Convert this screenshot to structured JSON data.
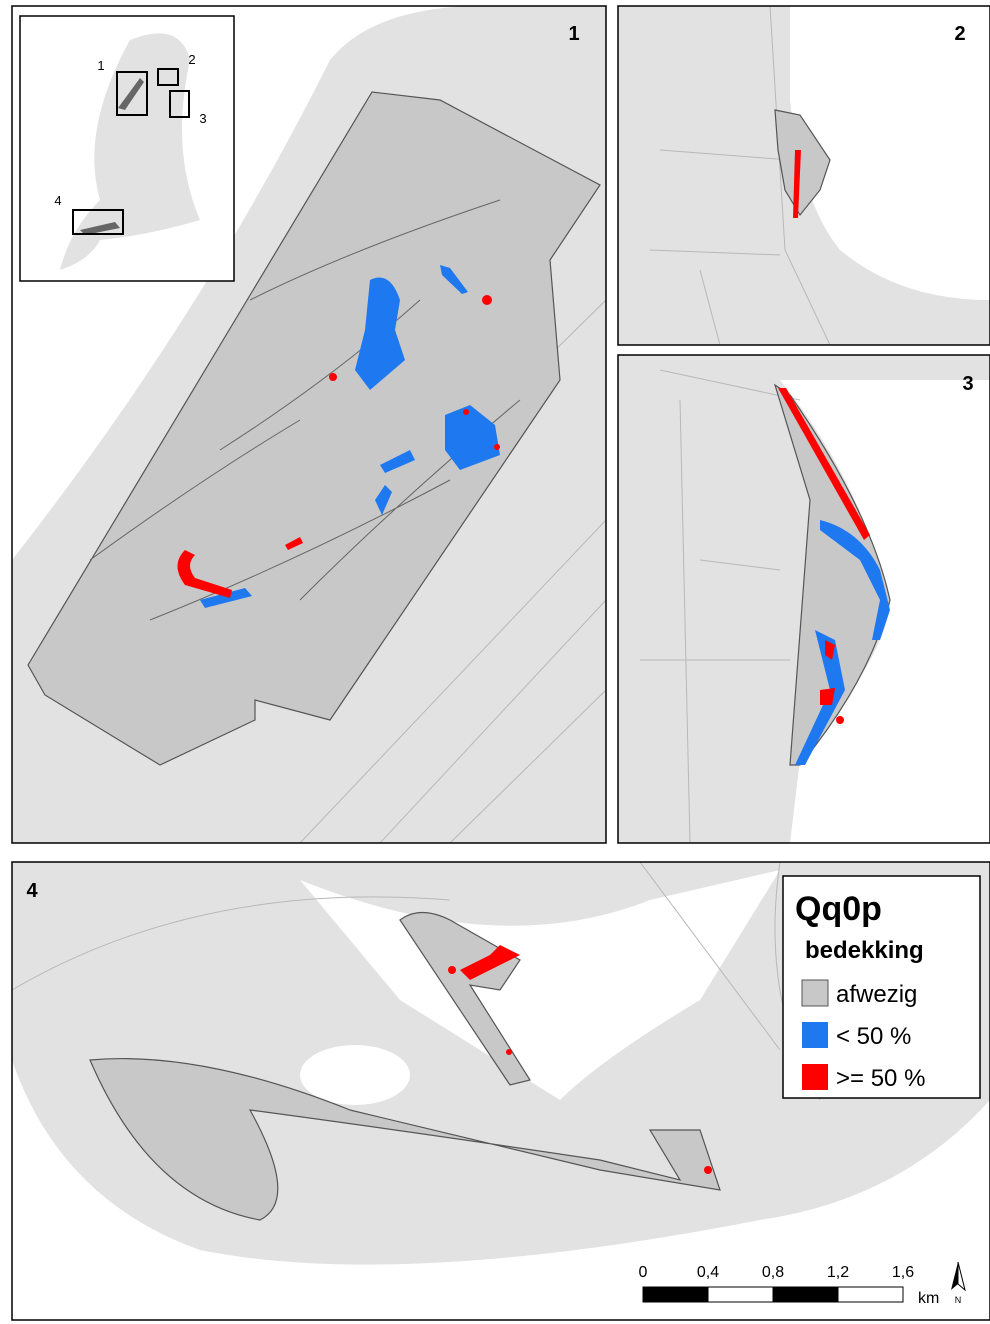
{
  "panels": [
    {
      "label": "1"
    },
    {
      "label": "2"
    },
    {
      "label": "3"
    },
    {
      "label": "4"
    }
  ],
  "inset": {
    "labels": [
      "1",
      "2",
      "3",
      "4"
    ]
  },
  "legend": {
    "title": "Qq0p",
    "subtitle": "bedekking",
    "items": [
      {
        "label": "afwezig",
        "color": "#c8c8c8"
      },
      {
        "label": "< 50 %",
        "color": "#1e78f0"
      },
      {
        "label": ">= 50 %",
        "color": "#ff0000"
      }
    ]
  },
  "scale_bar": {
    "labels": [
      "0",
      "0,4",
      "0,8",
      "1,2",
      "1,6"
    ],
    "unit": "km"
  },
  "north_arrow": {
    "label": "N"
  }
}
